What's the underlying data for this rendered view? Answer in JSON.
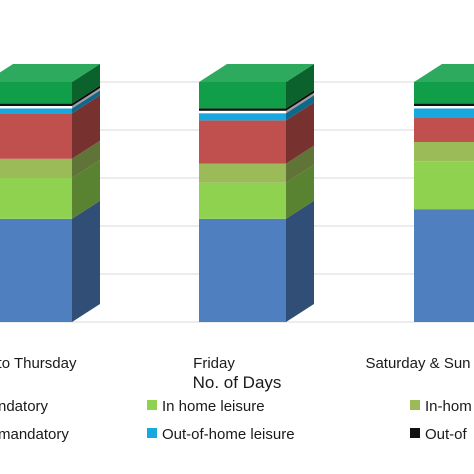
{
  "chart_data": {
    "type": "bar",
    "stacked": true,
    "three_d": true,
    "xlabel": "No. of Days",
    "categories": [
      "to Thursday",
      "Friday",
      "Saturday & Sun"
    ],
    "ylim": [
      0,
      100
    ],
    "grid": true,
    "legend_position": "bottom",
    "series": [
      {
        "name": "ndatory",
        "color": "#4f7fbf",
        "values": [
          43,
          43,
          47
        ]
      },
      {
        "name": "",
        "color": "#8fd24f",
        "values": [
          17,
          15,
          20
        ]
      },
      {
        "name": "",
        "color": "#9bbb59",
        "values": [
          8,
          8,
          8
        ]
      },
      {
        "name": "",
        "color": "#c0504d",
        "values": [
          19,
          18,
          10
        ]
      },
      {
        "name": "Out-of-home leisure",
        "color": "#18a8e0",
        "values": [
          2,
          3,
          4
        ]
      },
      {
        "name": "",
        "color": "#ffffff",
        "values": [
          1,
          1,
          1
        ]
      },
      {
        "name": "",
        "color": "#111111",
        "values": [
          1,
          1,
          1
        ]
      },
      {
        "name": "",
        "color": "#119e49",
        "values": [
          9,
          11,
          9
        ]
      }
    ],
    "legend": [
      {
        "label": "ndatory",
        "color": "#4f7fbf",
        "show_swatch": false
      },
      {
        "label": "In home leisure",
        "color": "#8fd24f",
        "show_swatch": true
      },
      {
        "label": "In-hom",
        "color": "#9bbb59",
        "show_swatch": true
      },
      {
        "label": "mandatory",
        "color": "#c0504d",
        "show_swatch": false
      },
      {
        "label": "Out-of-home leisure",
        "color": "#18a8e0",
        "show_swatch": true
      },
      {
        "label": "Out-of",
        "color": "#111111",
        "show_swatch": true
      }
    ]
  }
}
